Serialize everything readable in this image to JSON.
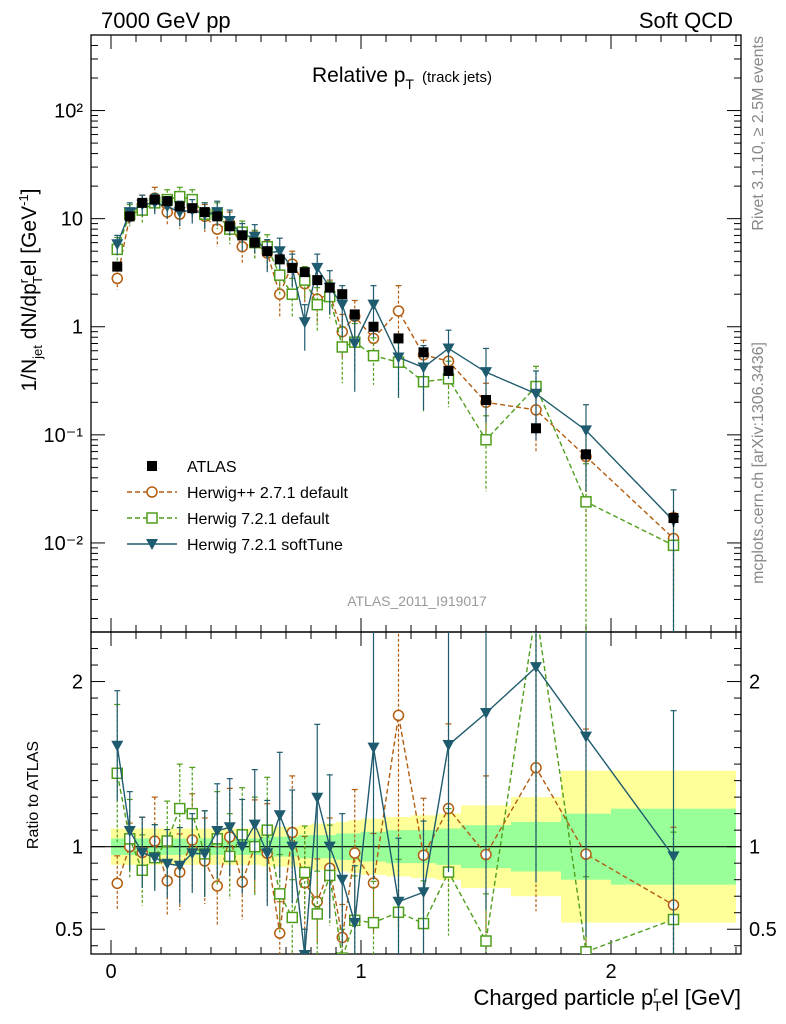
{
  "header": {
    "left": "7000 GeV pp",
    "right": "Soft QCD"
  },
  "side_labels": {
    "top": "Rivet 3.1.10, ≥ 2.5M events",
    "bottom": "mcplots.cern.ch [arXiv:1306.3436]"
  },
  "chart_data": {
    "type": "scatter",
    "title_main": "Relative p",
    "title_sub": "T",
    "title_suffix": "(track jets)",
    "analysis_id": "ATLAS_2011_I919017",
    "xlabel": "Charged particle p",
    "xlabel_sup": "r",
    "xlabel_sub": "T",
    "xlabel_suffix": "el [GeV]",
    "ylabel_main": "1/N",
    "ylabel_sub_jet": "jet",
    "ylabel_mid": " dN/dp",
    "ylabel_sup": "r",
    "ylabel_sub_t": "T",
    "ylabel_end": "el [GeV",
    "ylabel_exp": "-1",
    "ylabel_close": "]",
    "ratio_ylabel": "Ratio to ATLAS",
    "xlim": [
      -0.08,
      2.52
    ],
    "ylim": [
      0.0015,
      500
    ],
    "yscale": "log",
    "ratio_ylim": [
      0.35,
      2.3
    ],
    "x_ticks": [
      "0",
      "1",
      "2"
    ],
    "y_ticks": [
      "10⁻²",
      "10⁻¹",
      "1",
      "10",
      "10²"
    ],
    "ratio_ticks": [
      "0.5",
      "1",
      "2"
    ],
    "x": [
      0.025,
      0.075,
      0.125,
      0.175,
      0.225,
      0.275,
      0.325,
      0.375,
      0.425,
      0.475,
      0.525,
      0.575,
      0.625,
      0.675,
      0.725,
      0.775,
      0.825,
      0.875,
      0.925,
      0.975,
      1.05,
      1.15,
      1.25,
      1.35,
      1.5,
      1.7,
      1.9,
      2.25
    ],
    "bin_edges": [
      0.0,
      0.05,
      0.1,
      0.15,
      0.2,
      0.25,
      0.3,
      0.35,
      0.4,
      0.45,
      0.5,
      0.55,
      0.6,
      0.65,
      0.7,
      0.75,
      0.8,
      0.85,
      0.9,
      0.95,
      1.0,
      1.1,
      1.2,
      1.3,
      1.4,
      1.6,
      1.8,
      2.0,
      2.5
    ],
    "legend": [
      "ATLAS",
      "Herwig++ 2.7.1 default",
      "Herwig 7.2.1 default",
      "Herwig 7.2.1 softTune"
    ],
    "series": [
      {
        "name": "ATLAS",
        "color": "#000000",
        "marker": "square-filled",
        "values": [
          3.6,
          10.5,
          14.0,
          15.0,
          14.5,
          13.0,
          12.5,
          11.5,
          10.5,
          8.5,
          7.0,
          6.0,
          5.0,
          4.2,
          3.5,
          3.2,
          2.7,
          2.3,
          2.0,
          1.3,
          1.0,
          0.78,
          0.58,
          0.39,
          0.21,
          0.115,
          0.066,
          0.017
        ],
        "yerr": [
          0.2,
          0.5,
          0.6,
          0.6,
          0.6,
          0.5,
          0.5,
          0.5,
          0.4,
          0.4,
          0.3,
          0.3,
          0.25,
          0.2,
          0.2,
          0.2,
          0.15,
          0.15,
          0.12,
          0.1,
          0.07,
          0.06,
          0.05,
          0.035,
          0.02,
          0.012,
          0.008,
          0.003
        ],
        "band_inner": [
          0.05,
          0.05,
          0.05,
          0.05,
          0.05,
          0.05,
          0.05,
          0.05,
          0.05,
          0.05,
          0.05,
          0.05,
          0.06,
          0.06,
          0.06,
          0.07,
          0.07,
          0.07,
          0.08,
          0.08,
          0.09,
          0.1,
          0.1,
          0.11,
          0.13,
          0.15,
          0.2,
          0.23
        ],
        "band_outer": [
          0.11,
          0.11,
          0.11,
          0.11,
          0.11,
          0.11,
          0.11,
          0.11,
          0.11,
          0.11,
          0.11,
          0.11,
          0.12,
          0.12,
          0.12,
          0.13,
          0.14,
          0.14,
          0.15,
          0.16,
          0.17,
          0.18,
          0.19,
          0.2,
          0.25,
          0.3,
          0.46,
          0.46
        ]
      },
      {
        "name": "Herwig++ 2.7.1 default",
        "color": "#b25d10",
        "marker": "circle-open",
        "line": "dashed",
        "values": [
          2.8,
          10.5,
          13.5,
          15.5,
          11.5,
          11.0,
          13.0,
          10.5,
          8.0,
          9.0,
          5.5,
          6.0,
          4.8,
          2.0,
          3.8,
          2.5,
          1.8,
          2.0,
          0.9,
          1.25,
          0.78,
          1.4,
          0.55,
          0.48,
          0.2,
          0.17,
          0.063,
          0.011
        ],
        "yerr": [
          0.6,
          1.5,
          3.0,
          4.0,
          3.0,
          3.0,
          3.5,
          3.0,
          2.5,
          2.5,
          1.6,
          1.7,
          1.5,
          0.8,
          1.2,
          0.9,
          0.7,
          0.7,
          0.4,
          0.5,
          0.3,
          1.0,
          0.2,
          0.2,
          0.1,
          0.1,
          0.05,
          0.008
        ]
      },
      {
        "name": "Herwig 7.2.1 default",
        "color": "#4f9e1c",
        "marker": "square-open",
        "line": "dashed",
        "values": [
          5.2,
          11.0,
          12.0,
          14.0,
          15.0,
          16.0,
          15.0,
          11.0,
          11.0,
          8.0,
          7.5,
          6.0,
          5.5,
          3.0,
          2.0,
          2.7,
          1.6,
          1.9,
          0.65,
          0.72,
          0.54,
          0.47,
          0.31,
          0.33,
          0.09,
          0.28,
          0.024,
          0.0095
        ],
        "yerr": [
          1.5,
          2.5,
          3.0,
          3.0,
          3.5,
          3.5,
          3.5,
          3.0,
          3.0,
          2.2,
          2.0,
          1.8,
          1.6,
          1.0,
          0.8,
          0.9,
          0.7,
          0.7,
          0.35,
          0.35,
          0.25,
          0.25,
          0.15,
          0.15,
          0.06,
          0.15,
          0.03,
          0.009
        ]
      },
      {
        "name": "Herwig 7.2.1 softTune",
        "color": "#1f5b6e",
        "marker": "triangle-down-filled",
        "line": "solid",
        "values": [
          5.8,
          11.5,
          13.5,
          14.0,
          13.0,
          11.5,
          12.0,
          11.0,
          11.5,
          9.5,
          7.0,
          6.8,
          4.8,
          5.0,
          3.5,
          1.1,
          3.5,
          2.3,
          1.6,
          0.7,
          1.6,
          0.52,
          0.42,
          0.63,
          0.38,
          0.24,
          0.11,
          0.016
        ],
        "yerr": [
          1.2,
          2.5,
          3.0,
          3.0,
          3.0,
          3.0,
          3.0,
          3.0,
          3.0,
          2.5,
          2.0,
          2.0,
          1.6,
          1.6,
          1.2,
          0.5,
          1.2,
          1.0,
          0.8,
          0.45,
          0.8,
          0.3,
          0.25,
          0.3,
          0.25,
          0.15,
          0.08,
          0.015
        ]
      }
    ]
  }
}
